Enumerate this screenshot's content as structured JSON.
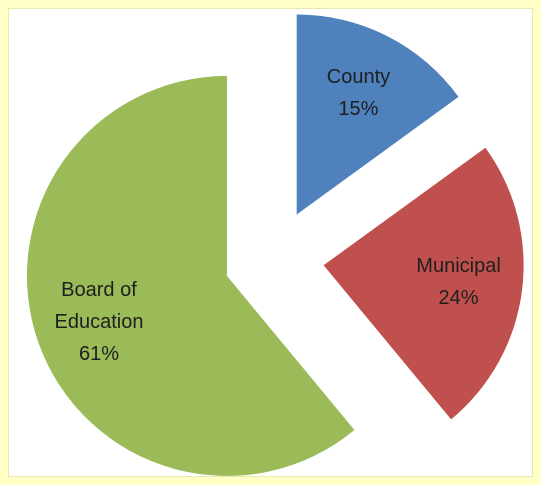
{
  "chart_data": {
    "type": "pie",
    "categories": [
      "County",
      "Municipal",
      "Board of Education"
    ],
    "values": [
      15,
      24,
      61
    ],
    "value_labels": [
      "15%",
      "24%",
      "61%"
    ],
    "colors": [
      "#4f81bd",
      "#c0504d",
      "#9bbb59"
    ],
    "exploded": true
  }
}
